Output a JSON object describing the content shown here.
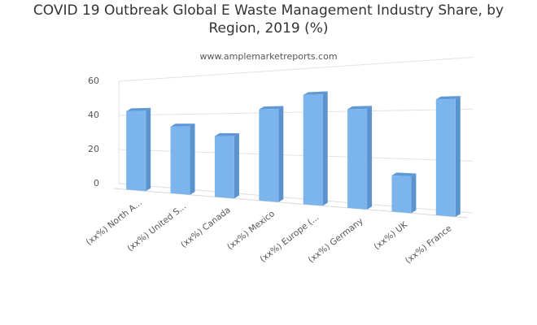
{
  "chart_data": {
    "type": "bar3d",
    "title": "COVID 19 Outbreak Global E Waste Management Industry Share, by Region, 2019 (%)",
    "subtitle": "www.amplemarketreports.com",
    "categories": [
      "(xx%) North A...",
      "(xx%) United S...",
      "(xx%) Canada",
      "(xx%) Mexico",
      "(xx%) Europe (...",
      "(xx%) Germany",
      "(xx%) UK",
      "(xx%) France"
    ],
    "values": [
      45,
      36,
      31,
      44,
      50,
      43,
      15,
      46
    ],
    "color": "#7cb5ec",
    "ylim": [
      0,
      60
    ],
    "yticks": [
      0,
      20,
      40,
      60
    ],
    "grid": true
  }
}
